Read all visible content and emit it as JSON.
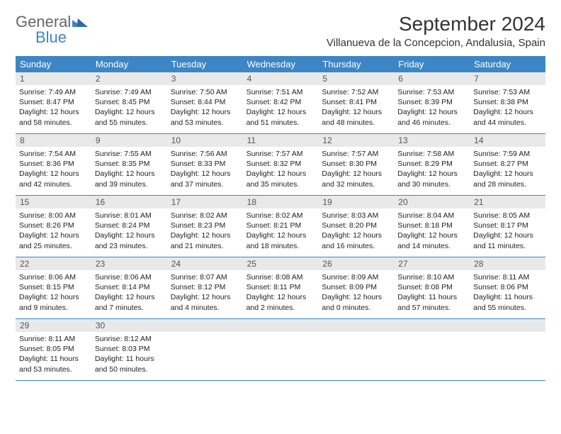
{
  "brand": {
    "word1": "General",
    "word2": "Blue"
  },
  "title": "September 2024",
  "location": "Villanueva de la Concepcion, Andalusia, Spain",
  "colors": {
    "header_bg": "#3d86c6",
    "daynum_bg": "#e9e9e9",
    "text": "#222222",
    "brand_accent": "#3d86c6"
  },
  "dow": [
    "Sunday",
    "Monday",
    "Tuesday",
    "Wednesday",
    "Thursday",
    "Friday",
    "Saturday"
  ],
  "weeks": [
    [
      {
        "n": "1",
        "sr": "7:49 AM",
        "ss": "8:47 PM",
        "dl": "12 hours and 58 minutes."
      },
      {
        "n": "2",
        "sr": "7:49 AM",
        "ss": "8:45 PM",
        "dl": "12 hours and 55 minutes."
      },
      {
        "n": "3",
        "sr": "7:50 AM",
        "ss": "8:44 PM",
        "dl": "12 hours and 53 minutes."
      },
      {
        "n": "4",
        "sr": "7:51 AM",
        "ss": "8:42 PM",
        "dl": "12 hours and 51 minutes."
      },
      {
        "n": "5",
        "sr": "7:52 AM",
        "ss": "8:41 PM",
        "dl": "12 hours and 48 minutes."
      },
      {
        "n": "6",
        "sr": "7:53 AM",
        "ss": "8:39 PM",
        "dl": "12 hours and 46 minutes."
      },
      {
        "n": "7",
        "sr": "7:53 AM",
        "ss": "8:38 PM",
        "dl": "12 hours and 44 minutes."
      }
    ],
    [
      {
        "n": "8",
        "sr": "7:54 AM",
        "ss": "8:36 PM",
        "dl": "12 hours and 42 minutes."
      },
      {
        "n": "9",
        "sr": "7:55 AM",
        "ss": "8:35 PM",
        "dl": "12 hours and 39 minutes."
      },
      {
        "n": "10",
        "sr": "7:56 AM",
        "ss": "8:33 PM",
        "dl": "12 hours and 37 minutes."
      },
      {
        "n": "11",
        "sr": "7:57 AM",
        "ss": "8:32 PM",
        "dl": "12 hours and 35 minutes."
      },
      {
        "n": "12",
        "sr": "7:57 AM",
        "ss": "8:30 PM",
        "dl": "12 hours and 32 minutes."
      },
      {
        "n": "13",
        "sr": "7:58 AM",
        "ss": "8:29 PM",
        "dl": "12 hours and 30 minutes."
      },
      {
        "n": "14",
        "sr": "7:59 AM",
        "ss": "8:27 PM",
        "dl": "12 hours and 28 minutes."
      }
    ],
    [
      {
        "n": "15",
        "sr": "8:00 AM",
        "ss": "8:26 PM",
        "dl": "12 hours and 25 minutes."
      },
      {
        "n": "16",
        "sr": "8:01 AM",
        "ss": "8:24 PM",
        "dl": "12 hours and 23 minutes."
      },
      {
        "n": "17",
        "sr": "8:02 AM",
        "ss": "8:23 PM",
        "dl": "12 hours and 21 minutes."
      },
      {
        "n": "18",
        "sr": "8:02 AM",
        "ss": "8:21 PM",
        "dl": "12 hours and 18 minutes."
      },
      {
        "n": "19",
        "sr": "8:03 AM",
        "ss": "8:20 PM",
        "dl": "12 hours and 16 minutes."
      },
      {
        "n": "20",
        "sr": "8:04 AM",
        "ss": "8:18 PM",
        "dl": "12 hours and 14 minutes."
      },
      {
        "n": "21",
        "sr": "8:05 AM",
        "ss": "8:17 PM",
        "dl": "12 hours and 11 minutes."
      }
    ],
    [
      {
        "n": "22",
        "sr": "8:06 AM",
        "ss": "8:15 PM",
        "dl": "12 hours and 9 minutes."
      },
      {
        "n": "23",
        "sr": "8:06 AM",
        "ss": "8:14 PM",
        "dl": "12 hours and 7 minutes."
      },
      {
        "n": "24",
        "sr": "8:07 AM",
        "ss": "8:12 PM",
        "dl": "12 hours and 4 minutes."
      },
      {
        "n": "25",
        "sr": "8:08 AM",
        "ss": "8:11 PM",
        "dl": "12 hours and 2 minutes."
      },
      {
        "n": "26",
        "sr": "8:09 AM",
        "ss": "8:09 PM",
        "dl": "12 hours and 0 minutes."
      },
      {
        "n": "27",
        "sr": "8:10 AM",
        "ss": "8:08 PM",
        "dl": "11 hours and 57 minutes."
      },
      {
        "n": "28",
        "sr": "8:11 AM",
        "ss": "8:06 PM",
        "dl": "11 hours and 55 minutes."
      }
    ],
    [
      {
        "n": "29",
        "sr": "8:11 AM",
        "ss": "8:05 PM",
        "dl": "11 hours and 53 minutes."
      },
      {
        "n": "30",
        "sr": "8:12 AM",
        "ss": "8:03 PM",
        "dl": "11 hours and 50 minutes."
      },
      null,
      null,
      null,
      null,
      null
    ]
  ],
  "labels": {
    "sunrise": "Sunrise:",
    "sunset": "Sunset:",
    "daylight": "Daylight:"
  }
}
